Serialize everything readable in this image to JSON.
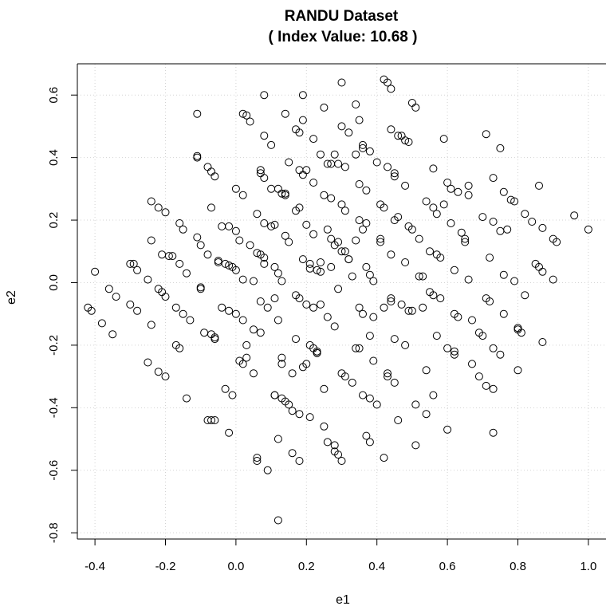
{
  "chart_data": {
    "type": "scatter",
    "title": "RANDU Dataset",
    "subtitle": "( Index Value: 10.68 )",
    "xlabel": "e1",
    "ylabel": "e2",
    "xlim": [
      -0.45,
      1.05
    ],
    "ylim": [
      -0.82,
      0.7
    ],
    "xticks": [
      -0.4,
      -0.2,
      0.0,
      0.2,
      0.4,
      0.6,
      0.8,
      1.0
    ],
    "xtick_labels": [
      "-0.4",
      "-0.2",
      "0.0",
      "0.2",
      "0.4",
      "0.6",
      "0.8",
      "1.0"
    ],
    "yticks": [
      -0.8,
      -0.6,
      -0.4,
      -0.2,
      0.0,
      0.2,
      0.4,
      0.6
    ],
    "ytick_labels": [
      "-0.8",
      "-0.6",
      "-0.4",
      "-0.2",
      "0.0",
      "0.2",
      "0.4",
      "0.6"
    ],
    "grid": true,
    "marker": "open-circle",
    "color": "#000000",
    "points": [
      [
        -0.42,
        -0.08
      ],
      [
        -0.41,
        -0.09
      ],
      [
        -0.4,
        0.035
      ],
      [
        -0.38,
        -0.13
      ],
      [
        -0.36,
        -0.02
      ],
      [
        -0.35,
        -0.165
      ],
      [
        -0.34,
        -0.045
      ],
      [
        -0.3,
        0.06
      ],
      [
        -0.29,
        0.06
      ],
      [
        -0.3,
        -0.07
      ],
      [
        -0.28,
        0.04
      ],
      [
        -0.28,
        -0.09
      ],
      [
        -0.25,
        0.01
      ],
      [
        -0.24,
        0.26
      ],
      [
        -0.24,
        -0.135
      ],
      [
        -0.25,
        -0.255
      ],
      [
        -0.24,
        0.135
      ],
      [
        -0.22,
        0.24
      ],
      [
        -0.22,
        -0.02
      ],
      [
        -0.21,
        -0.03
      ],
      [
        -0.22,
        -0.285
      ],
      [
        -0.21,
        0.09
      ],
      [
        -0.2,
        0.225
      ],
      [
        -0.2,
        -0.045
      ],
      [
        -0.2,
        -0.3
      ],
      [
        -0.19,
        0.085
      ],
      [
        -0.18,
        0.085
      ],
      [
        -0.17,
        -0.2
      ],
      [
        -0.16,
        -0.21
      ],
      [
        -0.16,
        0.19
      ],
      [
        -0.15,
        0.17
      ],
      [
        -0.16,
        0.06
      ],
      [
        -0.17,
        -0.08
      ],
      [
        -0.14,
        -0.37
      ],
      [
        -0.15,
        -0.1
      ],
      [
        -0.14,
        0.03
      ],
      [
        -0.11,
        0.145
      ],
      [
        -0.11,
        0.54
      ],
      [
        -0.11,
        0.405
      ],
      [
        -0.11,
        0.4
      ],
      [
        -0.1,
        0.12
      ],
      [
        -0.1,
        -0.015
      ],
      [
        -0.1,
        -0.02
      ],
      [
        -0.09,
        -0.16
      ],
      [
        -0.08,
        0.37
      ],
      [
        -0.07,
        -0.165
      ],
      [
        -0.07,
        0.355
      ],
      [
        -0.06,
        0.34
      ],
      [
        -0.07,
        0.24
      ],
      [
        -0.08,
        0.09
      ],
      [
        -0.06,
        -0.175
      ],
      [
        -0.06,
        -0.18
      ],
      [
        -0.07,
        -0.44
      ],
      [
        -0.06,
        -0.44
      ],
      [
        -0.05,
        0.065
      ],
      [
        -0.05,
        0.07
      ],
      [
        -0.04,
        0.18
      ],
      [
        -0.04,
        -0.08
      ],
      [
        -0.03,
        -0.34
      ],
      [
        -0.03,
        0.06
      ],
      [
        -0.02,
        0.18
      ],
      [
        -0.02,
        0.055
      ],
      [
        -0.02,
        -0.48
      ],
      [
        -0.01,
        0.05
      ],
      [
        -0.02,
        -0.09
      ],
      [
        -0.01,
        -0.36
      ],
      [
        0.0,
        0.3
      ],
      [
        0.0,
        0.165
      ],
      [
        0.0,
        0.04
      ],
      [
        0.0,
        -0.1
      ],
      [
        0.01,
        -0.25
      ],
      [
        0.02,
        -0.26
      ],
      [
        0.01,
        0.135
      ],
      [
        0.02,
        0.01
      ],
      [
        0.02,
        -0.12
      ],
      [
        0.02,
        0.54
      ],
      [
        0.03,
        0.535
      ],
      [
        0.04,
        0.515
      ],
      [
        0.03,
        -0.24
      ],
      [
        0.04,
        0.12
      ],
      [
        0.05,
        0.005
      ],
      [
        0.05,
        -0.15
      ],
      [
        0.05,
        -0.29
      ],
      [
        0.06,
        -0.57
      ],
      [
        0.06,
        0.22
      ],
      [
        0.06,
        0.095
      ],
      [
        0.07,
        0.36
      ],
      [
        0.07,
        0.35
      ],
      [
        0.07,
        0.09
      ],
      [
        0.07,
        -0.06
      ],
      [
        0.07,
        -0.16
      ],
      [
        0.08,
        0.08
      ],
      [
        0.08,
        0.47
      ],
      [
        0.08,
        0.6
      ],
      [
        0.08,
        0.335
      ],
      [
        0.08,
        0.19
      ],
      [
        0.08,
        0.06
      ],
      [
        0.09,
        -0.08
      ],
      [
        0.09,
        -0.6
      ],
      [
        0.1,
        0.18
      ],
      [
        0.1,
        0.3
      ],
      [
        0.1,
        0.44
      ],
      [
        0.11,
        0.185
      ],
      [
        0.11,
        0.05
      ],
      [
        0.11,
        -0.05
      ],
      [
        0.11,
        -0.36
      ],
      [
        0.11,
        -0.36
      ],
      [
        0.12,
        -0.5
      ],
      [
        0.12,
        0.03
      ],
      [
        0.12,
        0.3
      ],
      [
        0.12,
        -0.12
      ],
      [
        0.13,
        0.285
      ],
      [
        0.13,
        0.005
      ],
      [
        0.13,
        -0.24
      ],
      [
        0.13,
        -0.26
      ],
      [
        0.13,
        -0.37
      ],
      [
        0.14,
        0.285
      ],
      [
        0.14,
        0.28
      ],
      [
        0.14,
        0.15
      ],
      [
        0.14,
        -0.38
      ],
      [
        0.14,
        0.54
      ],
      [
        0.15,
        -0.39
      ],
      [
        0.15,
        0.13
      ],
      [
        0.15,
        0.385
      ],
      [
        0.16,
        -0.41
      ],
      [
        0.16,
        -0.545
      ],
      [
        0.16,
        -0.29
      ],
      [
        0.17,
        0.23
      ],
      [
        0.17,
        0.49
      ],
      [
        0.17,
        -0.04
      ],
      [
        0.17,
        -0.18
      ],
      [
        0.18,
        0.48
      ],
      [
        0.18,
        0.36
      ],
      [
        0.18,
        -0.05
      ],
      [
        0.18,
        -0.42
      ],
      [
        0.18,
        -0.57
      ],
      [
        0.18,
        0.24
      ],
      [
        0.19,
        0.075
      ],
      [
        0.19,
        0.345
      ],
      [
        0.19,
        0.6
      ],
      [
        0.2,
        0.36
      ],
      [
        0.2,
        0.185
      ],
      [
        0.2,
        -0.07
      ],
      [
        0.2,
        -0.26
      ],
      [
        0.21,
        0.06
      ],
      [
        0.21,
        -0.2
      ],
      [
        0.21,
        -0.43
      ],
      [
        0.21,
        0.045
      ],
      [
        0.22,
        0.46
      ],
      [
        0.22,
        0.32
      ],
      [
        0.22,
        0.155
      ],
      [
        0.22,
        -0.08
      ],
      [
        0.22,
        -0.21
      ],
      [
        0.23,
        0.04
      ],
      [
        0.23,
        -0.22
      ],
      [
        0.23,
        -0.225
      ],
      [
        0.23,
        -0.225
      ],
      [
        0.24,
        0.035
      ],
      [
        0.24,
        0.065
      ],
      [
        0.24,
        0.41
      ],
      [
        0.24,
        -0.07
      ],
      [
        0.25,
        -0.34
      ],
      [
        0.25,
        0.28
      ],
      [
        0.25,
        0.56
      ],
      [
        0.26,
        0.17
      ],
      [
        0.26,
        0.38
      ],
      [
        0.26,
        -0.11
      ],
      [
        0.26,
        -0.51
      ],
      [
        0.27,
        0.05
      ],
      [
        0.27,
        0.14
      ],
      [
        0.27,
        0.38
      ],
      [
        0.27,
        0.27
      ],
      [
        0.28,
        0.41
      ],
      [
        0.28,
        0.12
      ],
      [
        0.28,
        -0.14
      ],
      [
        0.28,
        -0.52
      ],
      [
        0.28,
        -0.54
      ],
      [
        0.29,
        -0.02
      ],
      [
        0.29,
        0.38
      ],
      [
        0.29,
        0.13
      ],
      [
        0.29,
        -0.55
      ],
      [
        0.3,
        0.5
      ],
      [
        0.3,
        0.25
      ],
      [
        0.3,
        0.1
      ],
      [
        0.3,
        -0.29
      ],
      [
        0.3,
        -0.57
      ],
      [
        0.3,
        0.64
      ],
      [
        0.31,
        0.37
      ],
      [
        0.31,
        0.23
      ],
      [
        0.31,
        0.1
      ],
      [
        0.31,
        -0.3
      ],
      [
        0.32,
        0.075
      ],
      [
        0.32,
        0.48
      ],
      [
        0.32,
        0.075
      ],
      [
        0.33,
        0.02
      ],
      [
        0.33,
        -0.32
      ],
      [
        0.34,
        0.135
      ],
      [
        0.34,
        0.41
      ],
      [
        0.34,
        -0.21
      ],
      [
        0.35,
        0.52
      ],
      [
        0.35,
        0.2
      ],
      [
        0.35,
        0.315
      ],
      [
        0.35,
        -0.08
      ],
      [
        0.36,
        0.44
      ],
      [
        0.36,
        0.17
      ],
      [
        0.36,
        -0.1
      ],
      [
        0.36,
        -0.36
      ],
      [
        0.36,
        0.43
      ],
      [
        0.37,
        0.05
      ],
      [
        0.37,
        0.295
      ],
      [
        0.37,
        0.19
      ],
      [
        0.37,
        -0.49
      ],
      [
        0.38,
        0.42
      ],
      [
        0.38,
        0.025
      ],
      [
        0.38,
        -0.37
      ],
      [
        0.38,
        -0.51
      ],
      [
        0.39,
        0.005
      ],
      [
        0.39,
        -0.11
      ],
      [
        0.39,
        -0.25
      ],
      [
        0.4,
        0.385
      ],
      [
        0.4,
        -0.39
      ],
      [
        0.41,
        0.25
      ],
      [
        0.41,
        0.14
      ],
      [
        0.41,
        0.13
      ],
      [
        0.42,
        -0.08
      ],
      [
        0.42,
        0.65
      ],
      [
        0.42,
        0.24
      ],
      [
        0.43,
        0.64
      ],
      [
        0.43,
        -0.29
      ],
      [
        0.43,
        0.37
      ],
      [
        0.43,
        -0.3
      ],
      [
        0.44,
        0.09
      ],
      [
        0.44,
        0.62
      ],
      [
        0.44,
        0.49
      ],
      [
        0.44,
        -0.05
      ],
      [
        0.44,
        -0.06
      ],
      [
        0.45,
        -0.32
      ],
      [
        0.45,
        0.34
      ],
      [
        0.45,
        0.35
      ],
      [
        0.45,
        0.2
      ],
      [
        0.45,
        -0.18
      ],
      [
        0.46,
        -0.44
      ],
      [
        0.46,
        0.47
      ],
      [
        0.46,
        0.21
      ],
      [
        0.47,
        -0.07
      ],
      [
        0.47,
        0.47
      ],
      [
        0.48,
        0.455
      ],
      [
        0.48,
        -0.2
      ],
      [
        0.48,
        0.065
      ],
      [
        0.48,
        0.31
      ],
      [
        0.49,
        0.45
      ],
      [
        0.49,
        -0.09
      ],
      [
        0.5,
        0.575
      ],
      [
        0.5,
        0.17
      ],
      [
        0.5,
        -0.09
      ],
      [
        0.51,
        0.56
      ],
      [
        0.51,
        -0.39
      ],
      [
        0.51,
        -0.52
      ],
      [
        0.52,
        0.02
      ],
      [
        0.52,
        0.14
      ],
      [
        0.53,
        0.02
      ],
      [
        0.53,
        -0.08
      ],
      [
        0.54,
        0.26
      ],
      [
        0.54,
        -0.28
      ],
      [
        0.54,
        -0.42
      ],
      [
        0.55,
        0.1
      ],
      [
        0.55,
        -0.03
      ],
      [
        0.56,
        0.24
      ],
      [
        0.56,
        0.365
      ],
      [
        0.56,
        -0.04
      ],
      [
        0.57,
        0.09
      ],
      [
        0.57,
        0.22
      ],
      [
        0.57,
        -0.17
      ],
      [
        0.58,
        0.08
      ],
      [
        0.58,
        -0.05
      ],
      [
        0.59,
        0.25
      ],
      [
        0.59,
        0.46
      ],
      [
        0.6,
        0.32
      ],
      [
        0.6,
        -0.21
      ],
      [
        0.6,
        -0.47
      ],
      [
        0.61,
        0.19
      ],
      [
        0.61,
        0.3
      ],
      [
        0.62,
        -0.22
      ],
      [
        0.62,
        0.04
      ],
      [
        0.62,
        -0.1
      ],
      [
        0.62,
        -0.23
      ],
      [
        0.63,
        0.29
      ],
      [
        0.63,
        -0.11
      ],
      [
        0.64,
        0.16
      ],
      [
        0.65,
        0.14
      ],
      [
        0.65,
        0.13
      ],
      [
        0.66,
        0.01
      ],
      [
        0.67,
        -0.12
      ],
      [
        0.67,
        -0.26
      ],
      [
        0.69,
        -0.16
      ],
      [
        0.69,
        -0.3
      ],
      [
        0.7,
        0.21
      ],
      [
        0.7,
        -0.17
      ],
      [
        0.71,
        0.475
      ],
      [
        0.71,
        -0.05
      ],
      [
        0.71,
        -0.33
      ],
      [
        0.72,
        0.08
      ],
      [
        0.72,
        -0.06
      ],
      [
        0.73,
        0.335
      ],
      [
        0.73,
        0.195
      ],
      [
        0.73,
        -0.21
      ],
      [
        0.73,
        -0.34
      ],
      [
        0.73,
        -0.48
      ],
      [
        0.75,
        0.43
      ],
      [
        0.75,
        -0.23
      ],
      [
        0.75,
        0.165
      ],
      [
        0.76,
        0.29
      ],
      [
        0.76,
        0.025
      ],
      [
        0.76,
        -0.1
      ],
      [
        0.77,
        0.17
      ],
      [
        0.78,
        0.265
      ],
      [
        0.79,
        0.26
      ],
      [
        0.79,
        0.005
      ],
      [
        0.8,
        -0.145
      ],
      [
        0.8,
        -0.15
      ],
      [
        0.8,
        -0.28
      ],
      [
        0.81,
        -0.16
      ],
      [
        0.82,
        0.22
      ],
      [
        0.82,
        -0.04
      ],
      [
        0.84,
        0.195
      ],
      [
        0.85,
        0.06
      ],
      [
        0.86,
        0.31
      ],
      [
        0.86,
        0.05
      ],
      [
        0.87,
        0.175
      ],
      [
        0.87,
        0.035
      ],
      [
        0.87,
        -0.19
      ],
      [
        0.9,
        0.14
      ],
      [
        0.9,
        0.01
      ],
      [
        0.91,
        0.13
      ],
      [
        0.96,
        0.215
      ],
      [
        1.0,
        0.17
      ],
      [
        0.12,
        -0.76
      ],
      [
        0.06,
        -0.56
      ],
      [
        -0.08,
        -0.44
      ],
      [
        0.25,
        -0.46
      ],
      [
        0.42,
        -0.56
      ],
      [
        0.56,
        -0.36
      ],
      [
        0.19,
        -0.27
      ],
      [
        0.03,
        -0.2
      ],
      [
        -0.13,
        -0.12
      ],
      [
        0.34,
        0.57
      ],
      [
        0.19,
        0.52
      ],
      [
        0.66,
        0.31
      ],
      [
        0.49,
        0.18
      ],
      [
        0.38,
        -0.17
      ],
      [
        0.66,
        0.28
      ],
      [
        0.02,
        0.28
      ],
      [
        0.35,
        -0.21
      ]
    ]
  }
}
